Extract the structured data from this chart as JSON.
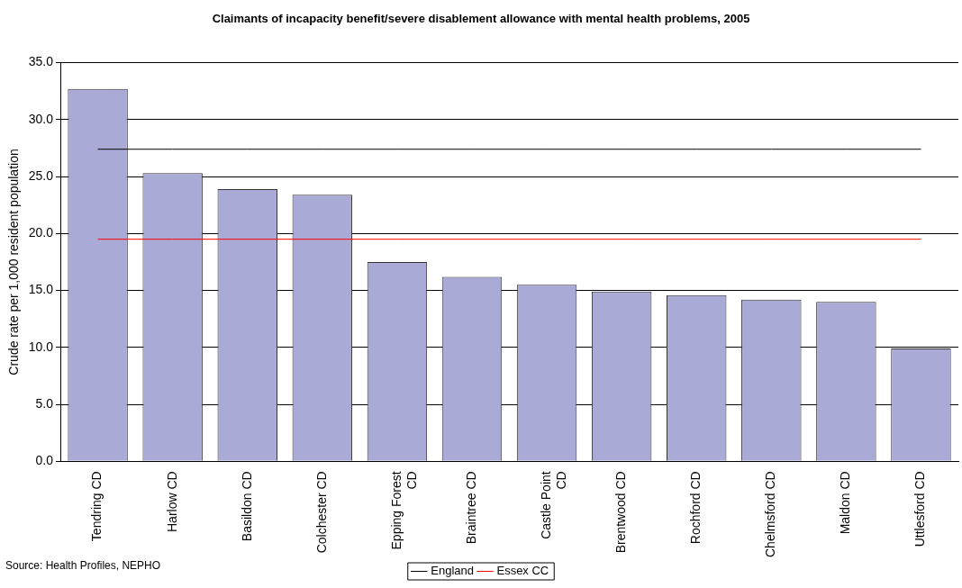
{
  "chart_data": {
    "type": "bar",
    "title": "Claimants of incapacity benefit/severe disablement allowance with mental health problems, 2005",
    "ylabel": "Crude rate per 1,000 resident population",
    "categories": [
      "Tendring CD",
      "Harlow CD",
      "Basildon CD",
      "Colchester CD",
      "Epping Forest CD",
      "Braintree CD",
      "Castle Point CD",
      "Brentwood CD",
      "Rochford CD",
      "Chelmsford CD",
      "Maldon CD",
      "Uttlesford CD"
    ],
    "series": [
      {
        "color": "#aaaad6",
        "values": [
          32.7,
          25.3,
          23.9,
          23.4,
          17.5,
          16.2,
          15.5,
          14.9,
          14.6,
          14.2,
          14.0,
          9.9
        ]
      },
      {
        "type": "line",
        "name": "England",
        "color": "#000000",
        "values": [
          27.4,
          27.4,
          27.4,
          27.4,
          27.4,
          27.4,
          27.4,
          27.4,
          27.4,
          27.4,
          27.4,
          27.4
        ]
      },
      {
        "type": "line",
        "name": "Essex CC",
        "color": "#ff0000",
        "values": [
          19.5,
          19.5,
          19.5,
          19.5,
          19.5,
          19.5,
          19.5,
          19.5,
          19.5,
          19.5,
          19.5,
          19.5
        ]
      }
    ],
    "ylim": [
      0,
      35
    ],
    "yticks": [
      {
        "value": 0,
        "label": "0.0"
      },
      {
        "value": 5,
        "label": "5.0"
      },
      {
        "value": 10,
        "label": "10.0"
      },
      {
        "value": 15,
        "label": "15.0"
      },
      {
        "value": 20,
        "label": "20.0"
      },
      {
        "value": 25,
        "label": "25.0"
      },
      {
        "value": 30,
        "label": "30.0"
      },
      {
        "value": 35,
        "label": "35.0"
      }
    ],
    "grid": "y",
    "legend": "bottom",
    "marker": "none",
    "annotations": [
      "Source: Health Profiles, NEPHO"
    ]
  }
}
